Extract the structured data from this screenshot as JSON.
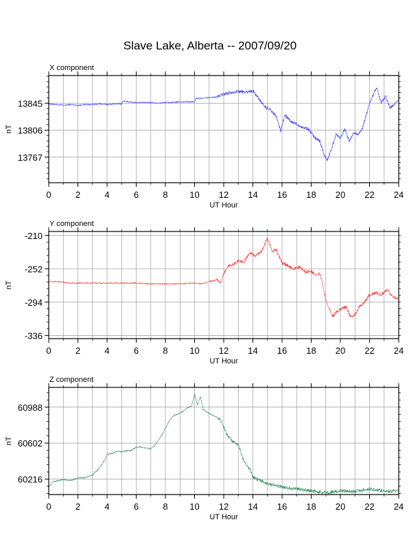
{
  "figure_title": "Slave Lake, Alberta -- 2007/09/20",
  "chart_data": [
    {
      "type": "line",
      "panel_label": "X component",
      "title": "X component",
      "xlabel": "UT Hour",
      "ylabel": "nT",
      "xlim": [
        0,
        24
      ],
      "ylim": [
        13730,
        13885
      ],
      "x_ticks": [
        0,
        2,
        4,
        6,
        8,
        10,
        12,
        14,
        16,
        18,
        20,
        22,
        24
      ],
      "y_ticks": [
        13767,
        13806,
        13845
      ],
      "y_minor_tick_step": 7.8,
      "grid": true,
      "color": "#3333ff",
      "series": [
        {
          "x": [
            0,
            0.5,
            1,
            1.5,
            2,
            2.5,
            3,
            3.5,
            4,
            4.5,
            5,
            5.1,
            5.5,
            6,
            6.5,
            7,
            7.5,
            8,
            8.5,
            9,
            9.5,
            10,
            10.1,
            10.5,
            11,
            11.5,
            12,
            12.5,
            13,
            13.5,
            14,
            14.4,
            14.8,
            15.2,
            15.6,
            15.9,
            16.2,
            16.6,
            17,
            17.4,
            17.8,
            18.2,
            18.6,
            18.9,
            19.1,
            19.4,
            19.7,
            20,
            20.3,
            20.6,
            20.9,
            21.2,
            21.5,
            21.8,
            22,
            22.3,
            22.5,
            22.8,
            23.1,
            23.4,
            23.7,
            24
          ],
          "values": [
            13844,
            13843,
            13842,
            13843,
            13842,
            13843,
            13843,
            13844,
            13843,
            13844,
            13844,
            13848,
            13847,
            13846,
            13846,
            13846,
            13845,
            13846,
            13846,
            13847,
            13847,
            13847,
            13852,
            13852,
            13853,
            13854,
            13858,
            13861,
            13862,
            13861,
            13863,
            13852,
            13840,
            13835,
            13826,
            13805,
            13828,
            13818,
            13815,
            13810,
            13808,
            13796,
            13790,
            13770,
            13762,
            13780,
            13800,
            13795,
            13808,
            13790,
            13802,
            13800,
            13808,
            13830,
            13845,
            13860,
            13866,
            13845,
            13855,
            13838,
            13844,
            13850
          ]
        }
      ]
    },
    {
      "type": "line",
      "panel_label": "Y component",
      "title": "Y component",
      "xlabel": "UT Hour",
      "ylabel": "nT",
      "xlim": [
        0,
        24
      ],
      "ylim": [
        -340,
        -205
      ],
      "x_ticks": [
        0,
        2,
        4,
        6,
        8,
        10,
        12,
        14,
        16,
        18,
        20,
        22,
        24
      ],
      "y_ticks": [
        -336,
        -294,
        -252,
        -210
      ],
      "y_minor_tick_step": 8.4,
      "grid": true,
      "color": "#ff3333",
      "series": [
        {
          "x": [
            0,
            0.5,
            1,
            1.5,
            2,
            3,
            4,
            5,
            6,
            7,
            8,
            9,
            10,
            10.5,
            11,
            11.5,
            11.8,
            12,
            12.3,
            12.6,
            13,
            13.4,
            13.8,
            14.2,
            14.6,
            15,
            15.3,
            15.6,
            16,
            16.4,
            16.8,
            17.2,
            17.6,
            18,
            18.3,
            18.6,
            19,
            19.2,
            19.5,
            19.8,
            20.1,
            20.4,
            20.7,
            21,
            21.3,
            21.6,
            22,
            22.4,
            22.8,
            23.2,
            23.6,
            24
          ],
          "values": [
            -268,
            -268,
            -269,
            -270,
            -270,
            -270,
            -270,
            -270,
            -270,
            -271,
            -271,
            -271,
            -270,
            -271,
            -268,
            -266,
            -270,
            -258,
            -248,
            -247,
            -242,
            -243,
            -232,
            -236,
            -230,
            -213,
            -230,
            -228,
            -245,
            -248,
            -252,
            -250,
            -256,
            -255,
            -260,
            -258,
            -290,
            -300,
            -312,
            -305,
            -302,
            -300,
            -313,
            -310,
            -300,
            -295,
            -285,
            -282,
            -285,
            -278,
            -288,
            -290
          ]
        }
      ]
    },
    {
      "type": "line",
      "panel_label": "Z component",
      "title": "Z component",
      "xlabel": "UT Hour",
      "ylabel": "nT",
      "xlim": [
        0,
        24
      ],
      "ylim": [
        60050,
        61200
      ],
      "x_ticks": [
        0,
        2,
        4,
        6,
        8,
        10,
        12,
        14,
        16,
        18,
        20,
        22,
        24
      ],
      "y_ticks": [
        60216,
        60602,
        60988
      ],
      "y_minor_tick_step": 77.2,
      "grid": true,
      "color": "#2e8b57",
      "series": [
        {
          "x": [
            0,
            0.3,
            0.7,
            1,
            1.5,
            2,
            2.5,
            3,
            3.4,
            3.8,
            4,
            4.3,
            4.7,
            5,
            5.3,
            5.6,
            6,
            6.3,
            6.6,
            7,
            7.3,
            7.6,
            8,
            8.3,
            8.6,
            9,
            9.4,
            9.8,
            10,
            10.2,
            10.4,
            10.6,
            11,
            11.4,
            11.8,
            12.2,
            12.6,
            13,
            13.4,
            13.8,
            14,
            14.5,
            15,
            15.5,
            16,
            17,
            18,
            18.5,
            19,
            19.5,
            20,
            20.5,
            21,
            21.5,
            22,
            22.5,
            23,
            23.5,
            24
          ],
          "values": [
            60130,
            60190,
            60200,
            60210,
            60200,
            60230,
            60230,
            60260,
            60320,
            60410,
            60480,
            60490,
            60510,
            60510,
            60520,
            60520,
            60560,
            60560,
            60550,
            60540,
            60580,
            60650,
            60760,
            60850,
            60900,
            60920,
            60970,
            61000,
            61130,
            61010,
            61100,
            60960,
            60920,
            60890,
            60850,
            60700,
            60620,
            60580,
            60400,
            60320,
            60240,
            60200,
            60170,
            60150,
            60130,
            60110,
            60090,
            60080,
            60070,
            60080,
            60090,
            60090,
            60085,
            60100,
            60110,
            60100,
            60090,
            60085,
            60100
          ]
        }
      ]
    }
  ]
}
